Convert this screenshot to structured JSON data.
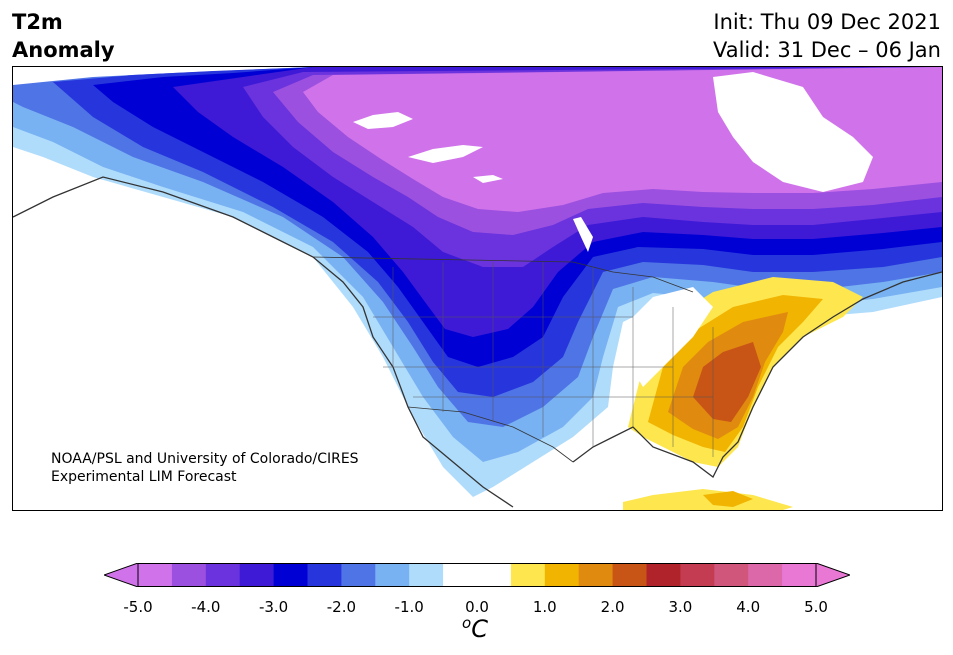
{
  "header": {
    "variable": "T2m",
    "field": "Anomaly",
    "init": "Init: Thu 09 Dec 2021",
    "valid": "Valid: 31 Dec – 06 Jan"
  },
  "credit": {
    "line1": "NOAA/PSL and University of Colorado/CIRES",
    "line2": "Experimental LIM Forecast"
  },
  "colorbar": {
    "unit_super": "o",
    "unit_base": "C",
    "ticks": [
      "-5.0",
      "-4.0",
      "-3.0",
      "-2.0",
      "-1.0",
      "0.0",
      "1.0",
      "2.0",
      "3.0",
      "4.0",
      "5.0"
    ],
    "bin_colors": [
      "#d073ea",
      "#9c50e0",
      "#6a33dd",
      "#3e1ad6",
      "#0000d4",
      "#2636dc",
      "#4f74e6",
      "#78b2f2",
      "#b0dcfc",
      "#ffffff",
      "#ffffff",
      "#fde64e",
      "#f1b400",
      "#e08a10",
      "#c85416",
      "#b0232a",
      "#c43c52",
      "#d0567c",
      "#dc68aa",
      "#e878d4"
    ],
    "under_color": "#d073ea",
    "over_color": "#e878d4"
  }
}
